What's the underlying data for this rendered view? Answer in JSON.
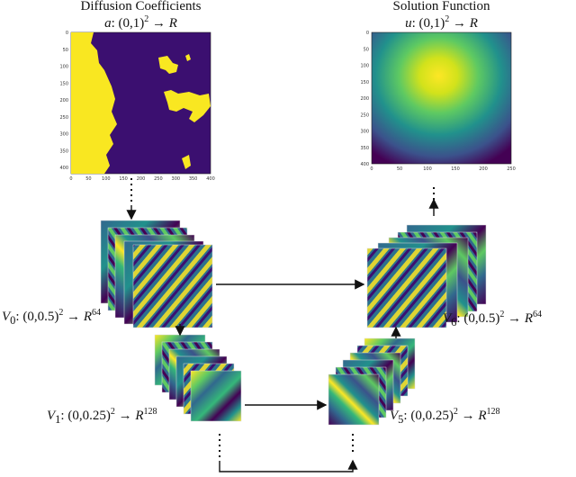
{
  "input_panel": {
    "title": "Diffusion Coefficients",
    "signature": {
      "var": "a",
      "domain": ": (0,1)",
      "exp": "2",
      "arrow": " → ",
      "codomain": "R"
    },
    "x_ticks": [
      "0",
      "50",
      "100",
      "150",
      "200",
      "250",
      "300",
      "350",
      "400"
    ],
    "y_ticks": [
      "0",
      "50",
      "100",
      "150",
      "200",
      "250",
      "300",
      "350",
      "400"
    ],
    "colors": {
      "low": "#3b0f70",
      "high": "#f9e721"
    }
  },
  "output_panel": {
    "title": "Solution Function",
    "signature": {
      "var": "u",
      "domain": ": (0,1)",
      "exp": "2",
      "arrow": " → ",
      "codomain": "R"
    },
    "x_ticks": [
      "0",
      "50",
      "100",
      "150",
      "200",
      "250"
    ],
    "y_ticks": [
      "0",
      "50",
      "100",
      "150",
      "200",
      "250",
      "300",
      "350",
      "400"
    ],
    "colors": {
      "low": "#3b0f70",
      "mid": "#21918c",
      "high": "#fde725"
    }
  },
  "layers": {
    "v0": {
      "var": "V",
      "sub": "0",
      "domain": ": (0,0.5)",
      "exp": "2",
      "arrow": " → ",
      "codomain": "R",
      "cexp": "64"
    },
    "v1": {
      "var": "V",
      "sub": "1",
      "domain": ": (0,0.25)",
      "exp": "2",
      "arrow": " → ",
      "codomain": "R",
      "cexp": "128"
    },
    "v5": {
      "var": "V",
      "sub": "5",
      "domain": ": (0,0.25)",
      "exp": "2",
      "arrow": " → ",
      "codomain": "R",
      "cexp": "128"
    },
    "v6": {
      "var": "V",
      "sub": "6",
      "domain": ": (0,0.5)",
      "exp": "2",
      "arrow": " → ",
      "codomain": "R",
      "cexp": "64"
    }
  },
  "palette": {
    "deep": "#440154",
    "blue": "#31688e",
    "teal": "#21918c",
    "green": "#35b779",
    "yellow": "#fde725"
  }
}
